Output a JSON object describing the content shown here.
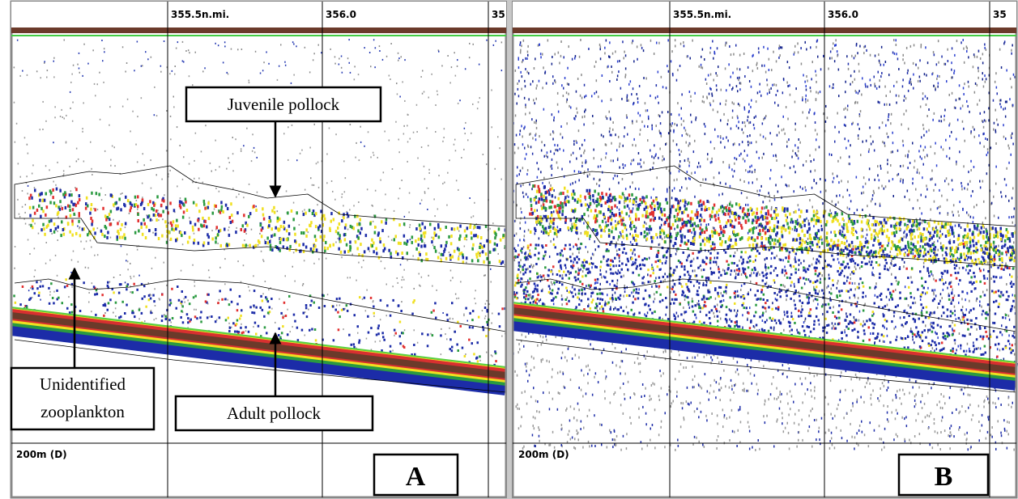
{
  "panels": [
    {
      "distance_labels": [
        "355.5n.mi.",
        "356.0",
        "35"
      ],
      "depth_label": "200m (D)",
      "panel_label": "A",
      "annotations": {
        "juvenile": "Juvenile pollock",
        "zooplankton": [
          "Unidentified",
          "zooplankton"
        ],
        "adult": "Adult pollock"
      }
    },
    {
      "distance_labels": [
        "355.5n.mi.",
        "356.0",
        "35"
      ],
      "depth_label": "200m (D)",
      "panel_label": "B"
    }
  ]
}
